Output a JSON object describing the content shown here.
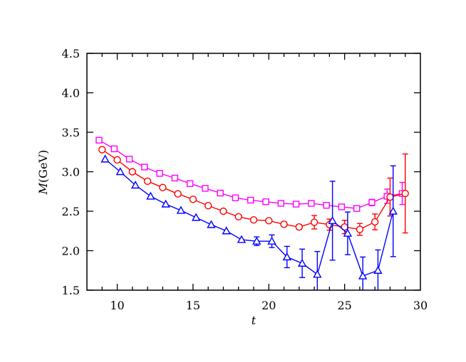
{
  "chart_data": {
    "type": "line",
    "xlabel": "t",
    "ylabel_italic": "M",
    "ylabel_rest": "(GeV)",
    "xlim": [
      8,
      30
    ],
    "ylim": [
      1.5,
      4.5
    ],
    "xticks": [
      "10",
      "15",
      "20",
      "25",
      "30"
    ],
    "yticks": [
      "1.5",
      "2.0",
      "2.5",
      "3.0",
      "3.5",
      "4.0",
      "4.5"
    ],
    "grid": false,
    "series": [
      {
        "color": "#ff00ff",
        "marker": "square",
        "x": [
          8.8,
          9.8,
          10.8,
          11.8,
          12.8,
          13.8,
          14.8,
          15.8,
          16.8,
          17.8,
          18.8,
          19.8,
          20.8,
          21.8,
          22.8,
          23.8,
          24.8,
          25.8,
          26.8,
          27.8,
          28.8
        ],
        "y": [
          3.4,
          3.29,
          3.16,
          3.06,
          2.98,
          2.92,
          2.85,
          2.79,
          2.73,
          2.67,
          2.64,
          2.62,
          2.6,
          2.59,
          2.6,
          2.575,
          2.555,
          2.535,
          2.61,
          2.69,
          2.725
        ],
        "err": [
          0,
          0,
          0,
          0,
          0,
          0,
          0,
          0,
          0,
          0,
          0.01,
          0.01,
          0.01,
          0.01,
          0.02,
          0.02,
          0.03,
          0.03,
          0.04,
          0.09,
          0.14
        ]
      },
      {
        "color": "#ff0000",
        "marker": "circle",
        "x": [
          9,
          10,
          11,
          12,
          13,
          14,
          15,
          16,
          17,
          18,
          19,
          20,
          21,
          22,
          23,
          24,
          25,
          26,
          27,
          28,
          29
        ],
        "y": [
          3.28,
          3.15,
          3.0,
          2.88,
          2.8,
          2.72,
          2.65,
          2.57,
          2.5,
          2.43,
          2.39,
          2.38,
          2.335,
          2.3,
          2.36,
          2.33,
          2.3,
          2.27,
          2.365,
          2.68,
          2.725
        ],
        "err": [
          0,
          0,
          0,
          0,
          0,
          0,
          0,
          0,
          0,
          0,
          0.01,
          0.01,
          0.03,
          0.03,
          0.085,
          0.07,
          0.085,
          0.075,
          0.1,
          0.24,
          0.5
        ]
      },
      {
        "color": "#0000ff",
        "marker": "triangle",
        "x": [
          9.2,
          10.2,
          11.2,
          12.2,
          13.2,
          14.2,
          15.2,
          16.2,
          17.2,
          18.2,
          19.2,
          20.2,
          21.2,
          22.2,
          23.2,
          24.2,
          25.2,
          26.2,
          27.2,
          28.2
        ],
        "y": [
          3.16,
          3.0,
          2.83,
          2.69,
          2.59,
          2.51,
          2.42,
          2.33,
          2.25,
          2.14,
          2.12,
          2.12,
          1.92,
          1.84,
          1.7,
          2.38,
          2.22,
          1.68,
          1.75,
          2.5
        ],
        "err": [
          0,
          0,
          0,
          0,
          0,
          0,
          0,
          0,
          0,
          0.01,
          0.055,
          0.08,
          0.135,
          0.18,
          0.29,
          0.5,
          0.27,
          0.24,
          0.26,
          0.575
        ]
      }
    ]
  }
}
